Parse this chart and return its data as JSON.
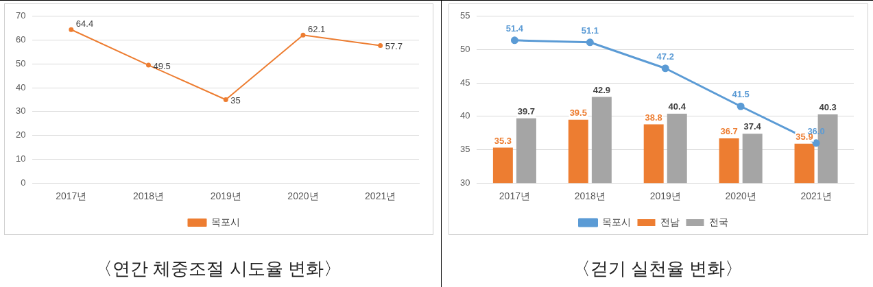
{
  "chart_data": [
    {
      "type": "line",
      "title": "〈연간 체중조절 시도율 변화〉",
      "categories": [
        "2017년",
        "2018년",
        "2019년",
        "2020년",
        "2021년"
      ],
      "series": [
        {
          "name": "목포시",
          "color": "#ed7d31",
          "values": [
            64.4,
            49.5,
            35,
            62.1,
            57.7
          ]
        }
      ],
      "ylim": [
        0,
        70
      ],
      "yticks": [
        0,
        10,
        20,
        30,
        40,
        50,
        60,
        70
      ],
      "grid": "y",
      "legend": "bottom",
      "marker": "circle",
      "data_labels": true
    },
    {
      "type": "bar",
      "title": "〈걷기 실천율 변화〉",
      "categories": [
        "2017년",
        "2018년",
        "2019년",
        "2020년",
        "2021년"
      ],
      "series": [
        {
          "name": "전남",
          "color": "#ed7d31",
          "values": [
            35.3,
            39.5,
            38.8,
            36.7,
            35.9
          ]
        },
        {
          "name": "전국",
          "color": "#a5a5a5",
          "values": [
            39.7,
            42.9,
            40.4,
            37.4,
            40.3
          ]
        },
        {
          "name": "목포시",
          "type": "line",
          "color": "#5b9bd5",
          "values": [
            51.4,
            51.1,
            47.2,
            41.5,
            36.0
          ],
          "value_labels": [
            "51.4",
            "51.1",
            "47.2",
            "41.5",
            "36.0"
          ]
        }
      ],
      "ylim": [
        30,
        55
      ],
      "yticks": [
        30,
        35,
        40,
        45,
        50,
        55
      ],
      "grid": "y",
      "legend": "bottom",
      "marker": "circle",
      "data_labels": true
    }
  ]
}
